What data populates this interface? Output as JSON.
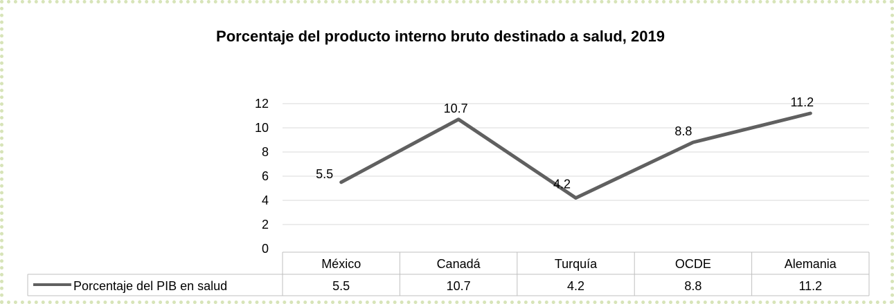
{
  "chart_data": {
    "type": "line",
    "title": "Porcentaje del producto interno bruto destinado a salud, 2019",
    "categories": [
      "México",
      "Canadá",
      "Turquía",
      "OCDE",
      "Alemania"
    ],
    "series": [
      {
        "name": "Porcentaje del PIB en salud",
        "values": [
          5.5,
          10.7,
          4.2,
          8.8,
          11.2
        ],
        "color": "#606060"
      }
    ],
    "ylim": [
      0,
      12
    ],
    "yticks": [
      0,
      2,
      4,
      6,
      8,
      10,
      12
    ],
    "grid": true,
    "data_labels": true,
    "data_table": true,
    "xlabel": "",
    "ylabel": ""
  },
  "colors": {
    "line": "#606060",
    "grid": "#d9d9d9",
    "table_border": "#bfbfbf",
    "frame_border": "#d7e4b8"
  }
}
